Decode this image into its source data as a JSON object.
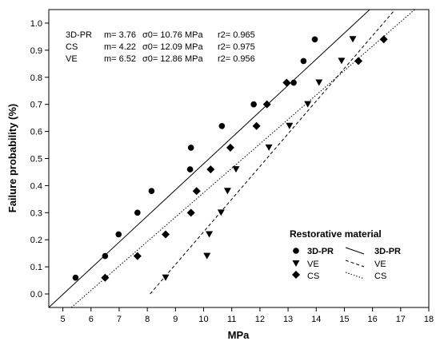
{
  "chart_data": {
    "type": "scatter",
    "xlabel": "MPa",
    "ylabel": "Failure probability (%)",
    "xlim": [
      4.5,
      18
    ],
    "ylim": [
      -0.05,
      1.05
    ],
    "x_ticks": [
      5,
      6,
      7,
      8,
      9,
      10,
      11,
      12,
      13,
      14,
      15,
      16,
      17,
      18
    ],
    "y_ticks": [
      0.0,
      0.1,
      0.2,
      0.3,
      0.4,
      0.5,
      0.6,
      0.7,
      0.8,
      0.9,
      1.0
    ],
    "y_tick_labels": [
      "0.0",
      "0.1",
      "0.2",
      "0.3",
      "0.4",
      "0.5",
      "0.6",
      "0.7",
      "0.8",
      "0.9",
      "1.0"
    ],
    "grid": false,
    "legend": {
      "title": "Restorative material",
      "position": "bottom-right",
      "marker_labels": [
        "3D-PR",
        "VE",
        "CS"
      ],
      "line_labels": [
        "3D-PR",
        "VE",
        "CS"
      ]
    },
    "stats": [
      {
        "name": "3D-PR",
        "m": "m= 3.76",
        "sigma": "σ0= 10.76 MPa",
        "r2": "r2= 0.965"
      },
      {
        "name": "CS",
        "m": "m= 4.22",
        "sigma": "σ0= 12.09 MPa",
        "r2": "r2= 0.975"
      },
      {
        "name": "VE",
        "m": "m= 6.52",
        "sigma": "σ0= 12.86 MPa",
        "r2": "r2= 0.956"
      }
    ],
    "series": [
      {
        "name": "3D-PR",
        "marker": "circle",
        "line_style": "solid",
        "points": [
          [
            5.45,
            0.06
          ],
          [
            6.5,
            0.14
          ],
          [
            6.98,
            0.22
          ],
          [
            7.65,
            0.3
          ],
          [
            8.15,
            0.38
          ],
          [
            9.52,
            0.46
          ],
          [
            9.55,
            0.54
          ],
          [
            10.65,
            0.62
          ],
          [
            11.78,
            0.7
          ],
          [
            13.2,
            0.78
          ],
          [
            13.55,
            0.86
          ],
          [
            13.95,
            0.94
          ]
        ],
        "fit_line": [
          [
            4.5,
            -0.05
          ],
          [
            15.9,
            1.05
          ]
        ]
      },
      {
        "name": "VE",
        "marker": "triangle-down",
        "line_style": "dashed",
        "points": [
          [
            8.65,
            0.06
          ],
          [
            10.12,
            0.14
          ],
          [
            10.2,
            0.22
          ],
          [
            10.62,
            0.3
          ],
          [
            10.85,
            0.38
          ],
          [
            11.15,
            0.46
          ],
          [
            12.32,
            0.54
          ],
          [
            13.05,
            0.62
          ],
          [
            13.7,
            0.7
          ],
          [
            14.1,
            0.78
          ],
          [
            14.9,
            0.86
          ],
          [
            15.3,
            0.94
          ]
        ],
        "fit_line": [
          [
            8.1,
            0.0
          ],
          [
            16.8,
            1.05
          ]
        ]
      },
      {
        "name": "CS",
        "marker": "diamond",
        "line_style": "dotted",
        "points": [
          [
            6.5,
            0.06
          ],
          [
            7.65,
            0.14
          ],
          [
            8.65,
            0.22
          ],
          [
            9.55,
            0.3
          ],
          [
            9.75,
            0.38
          ],
          [
            10.25,
            0.46
          ],
          [
            10.95,
            0.54
          ],
          [
            11.88,
            0.62
          ],
          [
            12.25,
            0.7
          ],
          [
            12.95,
            0.78
          ],
          [
            15.5,
            0.86
          ],
          [
            16.4,
            0.94
          ]
        ],
        "fit_line": [
          [
            5.3,
            -0.05
          ],
          [
            17.5,
            1.05
          ]
        ]
      }
    ]
  }
}
